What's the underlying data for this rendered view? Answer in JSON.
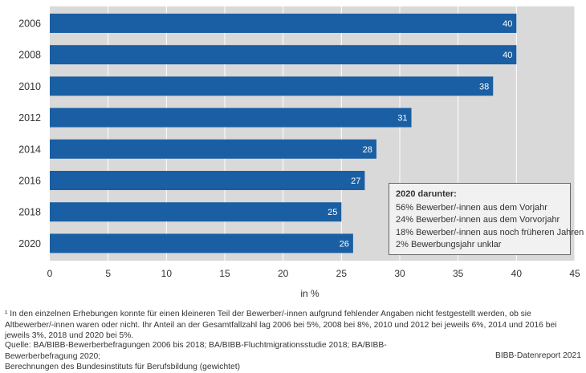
{
  "chart_data": {
    "type": "bar",
    "orientation": "horizontal",
    "categories": [
      "2006",
      "2008",
      "2010",
      "2012",
      "2014",
      "2016",
      "2018",
      "2020"
    ],
    "values": [
      40,
      40,
      38,
      31,
      28,
      27,
      25,
      26
    ],
    "xlabel": "in %",
    "xlim": [
      0,
      45
    ],
    "xticks": [
      0,
      5,
      10,
      15,
      20,
      25,
      30,
      35,
      40,
      45
    ],
    "grid": true,
    "bar_color": "#1a5fa3",
    "background_color": "#d9d9d9"
  },
  "legend": {
    "title": "2020 darunter:",
    "items": [
      "56% Bewerber/-innen aus dem Vorjahr",
      "24% Bewerber/-innen aus dem Vorvorjahr",
      "18% Bewerber/-innen aus noch früheren Jahren",
      "2%   Bewerbungsjahr unklar"
    ]
  },
  "footnote": "¹ In den einzelnen Erhebungen konnte für einen kleineren Teil der Bewerber/-innen aufgrund fehlender Angaben nicht festgestellt werden, ob sie Altbewerber/-innen waren oder nicht. Ihr Anteil an der Gesamtfallzahl lag 2006 bei 5%, 2008 bei 8%, 2010 und 2012 bei jeweils 6%, 2014 und 2016 bei jeweils 3%, 2018 und 2020 bei 5%.",
  "source_line1": "Quelle: BA/BIBB-Bewerberbefragungen 2006 bis 2018; BA/BIBB-Fluchtmigrationsstudie 2018; BA/BIBB-Bewerberbefragung 2020;",
  "source_line2": "Berechnungen des Bundesinstituts für Berufsbildung (gewichtet)",
  "credit": "BIBB-Datenreport 2021"
}
